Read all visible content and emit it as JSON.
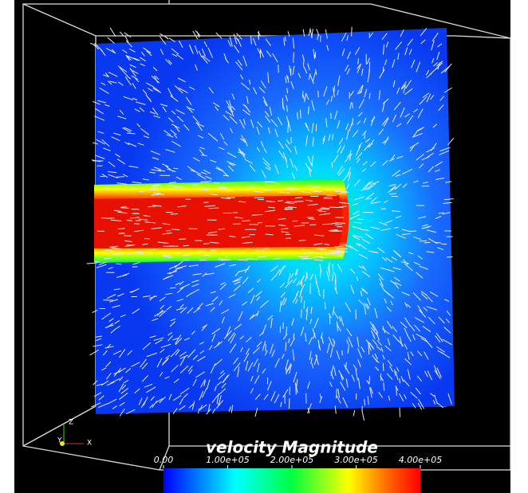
{
  "colorbar": {
    "title": "velocity Magnitude",
    "range": [
      0,
      400000
    ],
    "ticks": [
      {
        "value": 0,
        "label": "0.00"
      },
      {
        "value": 100000,
        "label": "1.00e+05"
      },
      {
        "value": 200000,
        "label": "2.00e+05"
      },
      {
        "value": 300000,
        "label": "3.00e+05"
      },
      {
        "value": 400000,
        "label": "4.00e+05"
      }
    ]
  },
  "axes_triad": {
    "x": "X",
    "y": "Y",
    "z": "Z"
  }
}
